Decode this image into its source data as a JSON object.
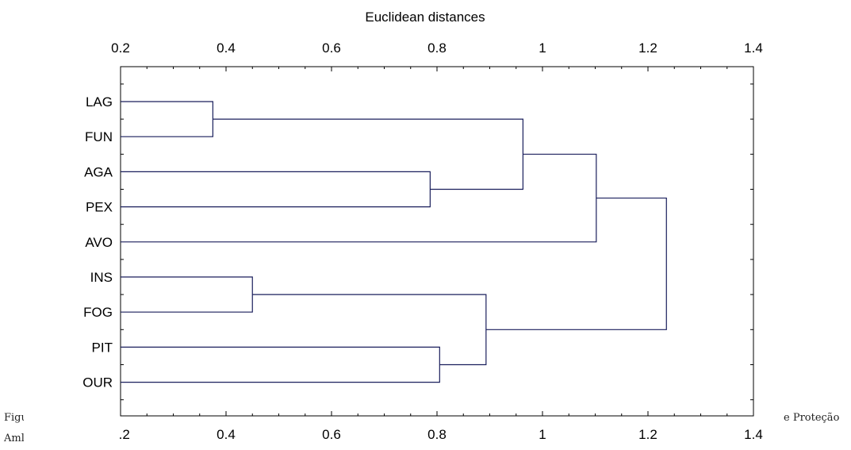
{
  "chart_data": {
    "type": "dendrogram",
    "title": "Euclidean distances",
    "axis_ticks": [
      "0.2",
      "0.4",
      "0.6",
      "0.8",
      "1",
      "1.2",
      "1.4"
    ],
    "xlim": [
      0.2,
      1.4
    ],
    "leaves": [
      "LAG",
      "FUN",
      "AGA",
      "PEX",
      "AVO",
      "INS",
      "FOG",
      "PIT",
      "OUR"
    ],
    "merges": [
      {
        "a": "LAG",
        "b": "FUN",
        "height": 0.375
      },
      {
        "a": "INS",
        "b": "FOG",
        "height": 0.45
      },
      {
        "a": "AGA",
        "b": "PEX",
        "height": 0.787
      },
      {
        "a": "PIT",
        "b": "OUR",
        "height": 0.805
      },
      {
        "a": "LAG+FUN",
        "b": "AGA+PEX",
        "height": 0.963
      },
      {
        "a": "INS+FOG",
        "b": "PIT+OUR",
        "height": 0.893
      },
      {
        "a": "LAG+FUN+AGA+PEX",
        "b": "AVO",
        "height": 1.102
      },
      {
        "a": "LAG+FUN+AGA+PEX+AVO",
        "b": "INS+FOG+PIT+OUR",
        "height": 1.235
      }
    ],
    "colors": {
      "lines": "#1a1f5c",
      "text": "#000000"
    }
  },
  "caption": {
    "left_line1": "Figu",
    "left_line2": "Aml",
    "right_line1": "e Proteção"
  }
}
